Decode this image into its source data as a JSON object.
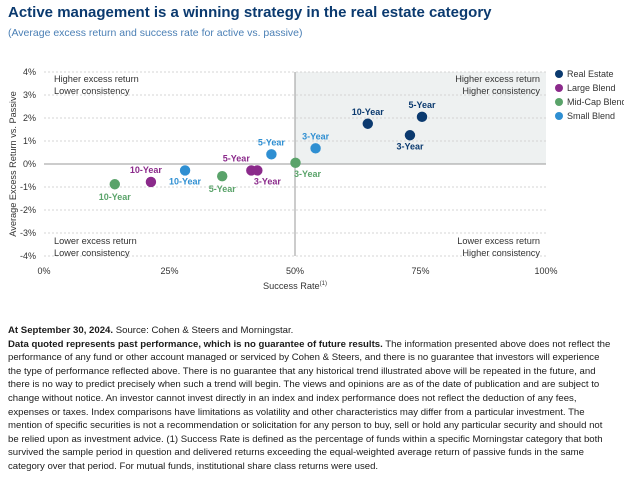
{
  "header": {
    "title": "Active management is a winning strategy in the real estate category",
    "subtitle": "(Average excess return and success rate for active vs. passive)"
  },
  "chart_data": {
    "type": "scatter",
    "xlabel": "Success Rate",
    "xlabel_sup": "(1)",
    "ylabel": "Average Excess Return vs. Passive",
    "xlim": [
      0,
      100
    ],
    "ylim": [
      -4,
      4
    ],
    "x_ticks": [
      "0%",
      "25%",
      "50%",
      "75%",
      "100%"
    ],
    "y_ticks": [
      "4%",
      "3%",
      "2%",
      "1%",
      "0%",
      "-1%",
      "-2%",
      "-3%",
      "-4%"
    ],
    "highlight_quadrant": "top-right",
    "quadrant_labels": {
      "top_left": [
        "Higher excess return",
        "Lower consistency"
      ],
      "top_right": [
        "Higher excess return",
        "Higher consistency"
      ],
      "bottom_left": [
        "Lower excess return",
        "Lower consistency"
      ],
      "bottom_right": [
        "Lower excess return",
        "Higher consistency"
      ]
    },
    "legend_position": "top-right",
    "series": [
      {
        "name": "Real Estate",
        "color": "#0b3a6f",
        "points": [
          {
            "label": "10-Year",
            "x": 64.5,
            "y": 1.75
          },
          {
            "label": "5-Year",
            "x": 75.3,
            "y": 2.05
          },
          {
            "label": "3-Year",
            "x": 72.9,
            "y": 1.25
          }
        ]
      },
      {
        "name": "Large Blend",
        "color": "#8b2a8b",
        "points": [
          {
            "label": "10-Year",
            "x": 21.3,
            "y": -0.78
          },
          {
            "label": "5-Year",
            "x": 41.3,
            "y": -0.28
          },
          {
            "label": "3-Year",
            "x": 42.5,
            "y": -0.28
          }
        ]
      },
      {
        "name": "Mid-Cap Blend",
        "color": "#5aa36a",
        "points": [
          {
            "label": "10-Year",
            "x": 14.1,
            "y": -0.88
          },
          {
            "label": "5-Year",
            "x": 35.5,
            "y": -0.53
          },
          {
            "label": "3-Year",
            "x": 50.1,
            "y": 0.05
          }
        ]
      },
      {
        "name": "Small Blend",
        "color": "#2f8fd2",
        "points": [
          {
            "label": "10-Year",
            "x": 28.1,
            "y": -0.28
          },
          {
            "label": "5-Year",
            "x": 45.3,
            "y": 0.42
          },
          {
            "label": "3-Year",
            "x": 54.1,
            "y": 0.68
          }
        ]
      }
    ]
  },
  "footer": {
    "date_line": "At September 30, 2024.",
    "source": "Source: Cohen & Steers and Morningstar.",
    "disclaimer_bold": "Data quoted represents past performance, which is no guarantee of future results.",
    "disclaimer": "The information presented above does not reflect the performance of any fund or other account managed or serviced by Cohen & Steers, and there is no guarantee that investors will experience the type of performance reflected above. There is no guarantee that any historical trend illustrated above will be repeated in the future, and there is no way to predict precisely when such a trend will begin. The views and opinions are as of the date of publication and are subject to change without notice. An investor cannot invest directly in an index and index performance does not reflect the deduction of any fees, expenses or taxes. Index comparisons have limitations as volatility and other characteristics may differ from a particular investment. The mention of specific securities is not a recommendation or solicitation for any person to buy, sell or hold any particular security and should not be relied upon as investment advice. (1) Success Rate is defined as the percentage of funds within a specific Morningstar category that both survived the sample period in question and delivered returns exceeding the equal-weighted average return of passive funds in the same category over that period. For mutual funds, institutional share class returns were used."
  }
}
